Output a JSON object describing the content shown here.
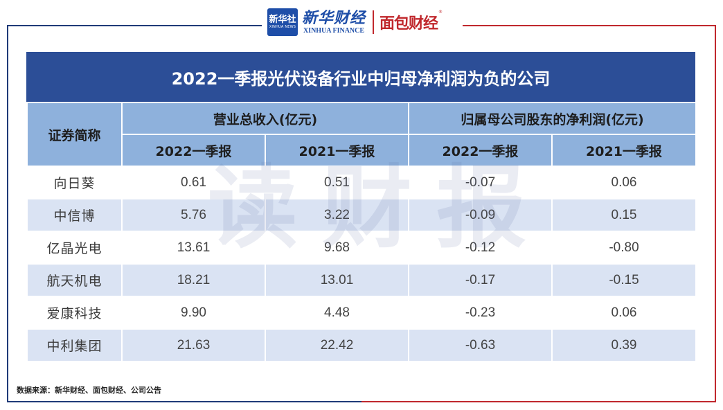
{
  "logos": {
    "xinhua_badge": "新华社",
    "xinhua_badge_en": "XINHUA NEWS",
    "xinhua_finance": "新华财经",
    "xinhua_finance_en": "XINHUA FINANCE",
    "mianbao": "面包财经",
    "registered": "®"
  },
  "watermark": [
    "读",
    "财",
    "报"
  ],
  "table": {
    "title": "2022一季报光伏设备行业中归母净利润为负的公司",
    "name_header": "证券简称",
    "group_headers": [
      "营业总收入(亿元)",
      "归属母公司股东的净利润(亿元)"
    ],
    "sub_headers": [
      "2022一季报",
      "2021一季报",
      "2022一季报",
      "2021一季报"
    ],
    "rows": [
      {
        "name": "向日葵",
        "rev_2022": "0.61",
        "rev_2021": "0.51",
        "np_2022": "-0.07",
        "np_2021": "0.06"
      },
      {
        "name": "中信博",
        "rev_2022": "5.76",
        "rev_2021": "3.22",
        "np_2022": "-0.09",
        "np_2021": "0.15"
      },
      {
        "name": "亿晶光电",
        "rev_2022": "13.61",
        "rev_2021": "9.68",
        "np_2022": "-0.12",
        "np_2021": "-0.80"
      },
      {
        "name": "航天机电",
        "rev_2022": "18.21",
        "rev_2021": "13.01",
        "np_2022": "-0.17",
        "np_2021": "-0.15"
      },
      {
        "name": "爱康科技",
        "rev_2022": "9.90",
        "rev_2021": "4.48",
        "np_2022": "-0.23",
        "np_2021": "0.06"
      },
      {
        "name": "中利集团",
        "rev_2022": "21.63",
        "rev_2021": "22.42",
        "np_2022": "-0.63",
        "np_2021": "0.39"
      }
    ]
  },
  "source": "数据来源：新华财经、面包财经、公司公告",
  "colors": {
    "title_bg": "#2c4e97",
    "header_bg": "#8eb1dc",
    "row_alt_bg": "#dae3f3",
    "brand_blue": "#1e4ea8",
    "brand_red": "#c0282d"
  }
}
